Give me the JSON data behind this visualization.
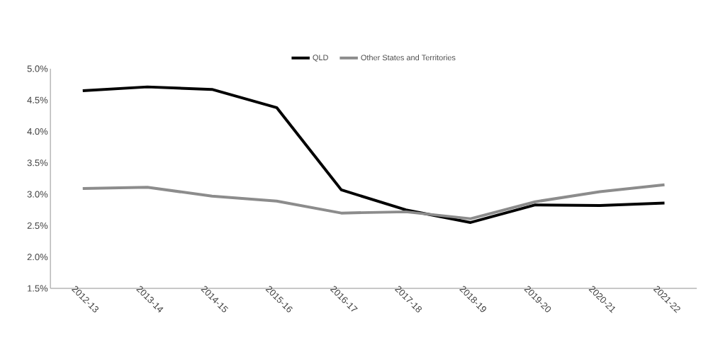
{
  "chart_data": {
    "type": "line",
    "categories": [
      "2012-13",
      "2013-14",
      "2014-15",
      "2015-16",
      "2016-17",
      "2017-18",
      "2018-19",
      "2019-20",
      "2020-21",
      "2021-22"
    ],
    "series": [
      {
        "name": "QLD",
        "color": "#000000",
        "values": [
          4.65,
          4.71,
          4.67,
          4.38,
          3.07,
          2.75,
          2.55,
          2.83,
          2.82,
          2.86
        ]
      },
      {
        "name": "Other States and Territories",
        "color": "#8c8c8c",
        "values": [
          3.09,
          3.11,
          2.97,
          2.89,
          2.7,
          2.72,
          2.61,
          2.88,
          3.04,
          3.15
        ]
      }
    ],
    "ylim": [
      1.5,
      5.0
    ],
    "yticks": [
      {
        "value": 1.5,
        "label": "1.5%"
      },
      {
        "value": 2.0,
        "label": "2.0%"
      },
      {
        "value": 2.5,
        "label": "2.5%"
      },
      {
        "value": 3.0,
        "label": "3.0%"
      },
      {
        "value": 3.5,
        "label": "3.5%"
      },
      {
        "value": 4.0,
        "label": "4.0%"
      },
      {
        "value": 4.5,
        "label": "4.5%"
      },
      {
        "value": 5.0,
        "label": "5.0%"
      }
    ],
    "grid": false,
    "legend": "top"
  }
}
